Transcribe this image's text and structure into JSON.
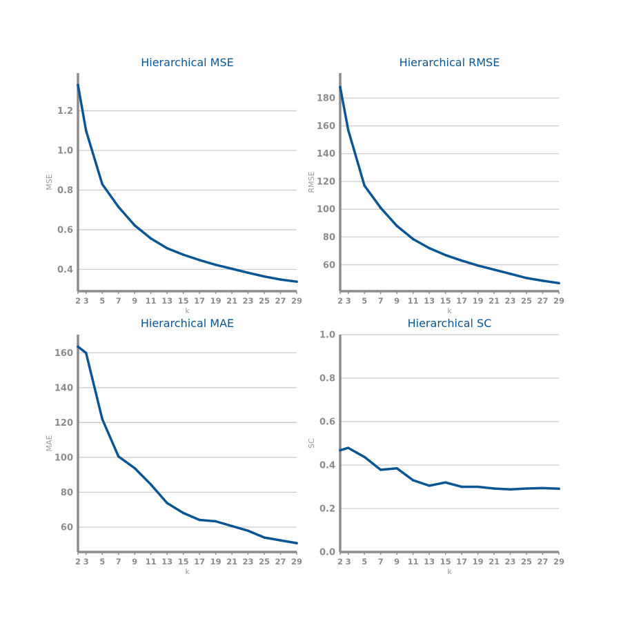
{
  "colors": {
    "line": "#0a5592",
    "grid": "#cccccc",
    "axis": "#8c8c8c",
    "tick_text": "#8c8c8c",
    "title": "#0a5592"
  },
  "chart_data": [
    {
      "type": "line",
      "title": "Hierarchical MSE",
      "xlabel": "k",
      "ylabel": "MSE",
      "grid": true,
      "xticks": [
        2,
        3,
        5,
        7,
        9,
        11,
        13,
        15,
        17,
        19,
        21,
        23,
        25,
        27,
        29
      ],
      "xlim": [
        2,
        29
      ],
      "yticks": [
        0.4,
        0.6,
        0.8,
        1.0,
        1.2
      ],
      "ytick_labels": [
        "0.4",
        "0.6",
        "0.8",
        "1.0",
        "1.2"
      ],
      "ylim": [
        0.29,
        1.39
      ],
      "x": [
        2,
        3,
        5,
        7,
        9,
        11,
        13,
        15,
        17,
        19,
        21,
        23,
        25,
        27,
        29
      ],
      "y": [
        1.33,
        1.1,
        0.83,
        0.715,
        0.622,
        0.556,
        0.507,
        0.474,
        0.447,
        0.423,
        0.403,
        0.383,
        0.364,
        0.349,
        0.338
      ]
    },
    {
      "type": "line",
      "title": "Hierarchical RMSE",
      "xlabel": "k",
      "ylabel": "RMSE",
      "grid": true,
      "xticks": [
        2,
        3,
        5,
        7,
        9,
        11,
        13,
        15,
        17,
        19,
        21,
        23,
        25,
        27,
        29
      ],
      "xlim": [
        2,
        29
      ],
      "yticks": [
        60,
        80,
        100,
        120,
        140,
        160,
        180
      ],
      "ytick_labels": [
        "60",
        "80",
        "100",
        "120",
        "140",
        "160",
        "180"
      ],
      "ylim": [
        41,
        198
      ],
      "x": [
        2,
        3,
        5,
        7,
        9,
        11,
        13,
        15,
        17,
        19,
        21,
        23,
        25,
        27,
        29
      ],
      "y": [
        188,
        157,
        117,
        101,
        88,
        78.5,
        72,
        67,
        63,
        59.5,
        56.5,
        53.5,
        50.5,
        48.5,
        46.8
      ]
    },
    {
      "type": "line",
      "title": "Hierarchical MAE",
      "xlabel": "k",
      "ylabel": "MAE",
      "grid": true,
      "xticks": [
        2,
        3,
        5,
        7,
        9,
        11,
        13,
        15,
        17,
        19,
        21,
        23,
        25,
        27,
        29
      ],
      "xlim": [
        2,
        29
      ],
      "yticks": [
        60,
        80,
        100,
        120,
        140,
        160
      ],
      "ytick_labels": [
        "60",
        "80",
        "100",
        "120",
        "140",
        "160"
      ],
      "ylim": [
        45.7,
        170.4
      ],
      "x": [
        2,
        3,
        5,
        7,
        9,
        11,
        13,
        15,
        17,
        19,
        21,
        23,
        25,
        27,
        29
      ],
      "y": [
        163.5,
        159.9,
        122,
        100.5,
        93.8,
        84.4,
        73.8,
        68.1,
        64.1,
        63.3,
        60.6,
        57.9,
        54,
        52.4,
        50.8
      ]
    },
    {
      "type": "line",
      "title": "Hierarchical SC",
      "xlabel": "k",
      "ylabel": "SC",
      "grid": true,
      "xticks": [
        2,
        3,
        5,
        7,
        9,
        11,
        13,
        15,
        17,
        19,
        21,
        23,
        25,
        27,
        29
      ],
      "xlim": [
        2,
        29
      ],
      "yticks": [
        0.0,
        0.2,
        0.4,
        0.6,
        0.8,
        1.0
      ],
      "ytick_labels": [
        "0.0",
        "0.2",
        "0.4",
        "0.6",
        "0.8",
        "1.0"
      ],
      "ylim": [
        0,
        1
      ],
      "x": [
        2,
        3,
        5,
        7,
        9,
        11,
        13,
        15,
        17,
        19,
        21,
        23,
        25,
        27,
        29
      ],
      "y": [
        0.468,
        0.479,
        0.437,
        0.378,
        0.385,
        0.33,
        0.305,
        0.32,
        0.3,
        0.3,
        0.292,
        0.288,
        0.292,
        0.294,
        0.291
      ]
    }
  ]
}
